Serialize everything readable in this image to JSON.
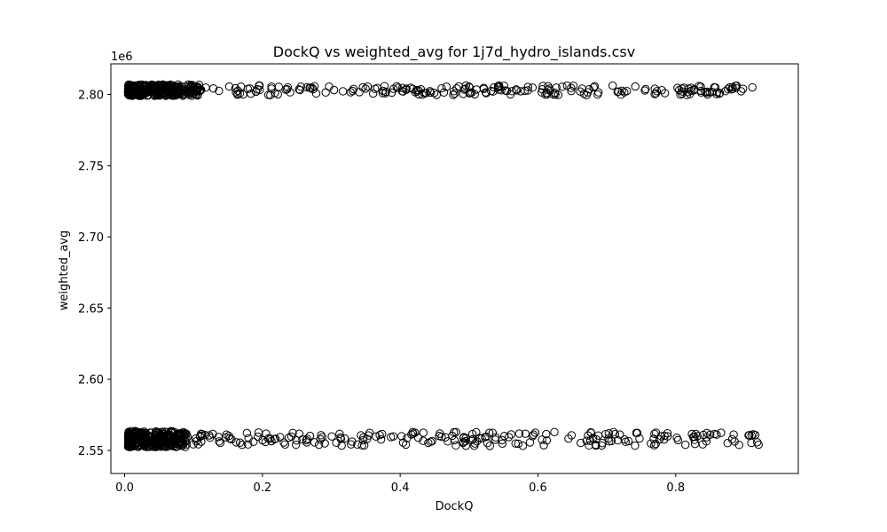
{
  "chart_data": {
    "type": "scatter",
    "title": "DockQ vs weighted_avg for 1j7d_hydro_islands.csv",
    "xlabel": "DockQ",
    "ylabel": "weighted_avg",
    "y_offset_label": "1e6",
    "xlim": [
      -0.02,
      0.978
    ],
    "ylim": [
      2.5338,
      2.8215
    ],
    "x_ticks": [
      0.0,
      0.2,
      0.4,
      0.6,
      0.8
    ],
    "x_tick_labels": [
      "0.0",
      "0.2",
      "0.4",
      "0.6",
      "0.8"
    ],
    "y_ticks": [
      2.55,
      2.6,
      2.65,
      2.7,
      2.75,
      2.8
    ],
    "y_tick_labels": [
      "2.55",
      "2.60",
      "2.65",
      "2.70",
      "2.75",
      "2.80"
    ],
    "grid": false,
    "marker": "open-circle",
    "marker_color": "#000000",
    "clusters": [
      {
        "name": "upper",
        "x_range": [
          0.005,
          0.915
        ],
        "y_center": 2.803,
        "y_spread": [
          2.798,
          2.808
        ],
        "dense_x_range": [
          0.005,
          0.11
        ]
      },
      {
        "name": "lower",
        "x_range": [
          0.005,
          0.93
        ],
        "y_center": 2.558,
        "y_spread": [
          2.549,
          2.563
        ],
        "dense_x_range": [
          0.005,
          0.09
        ]
      }
    ],
    "points_per_cluster": {
      "dense": 300,
      "sparse": 260
    }
  }
}
